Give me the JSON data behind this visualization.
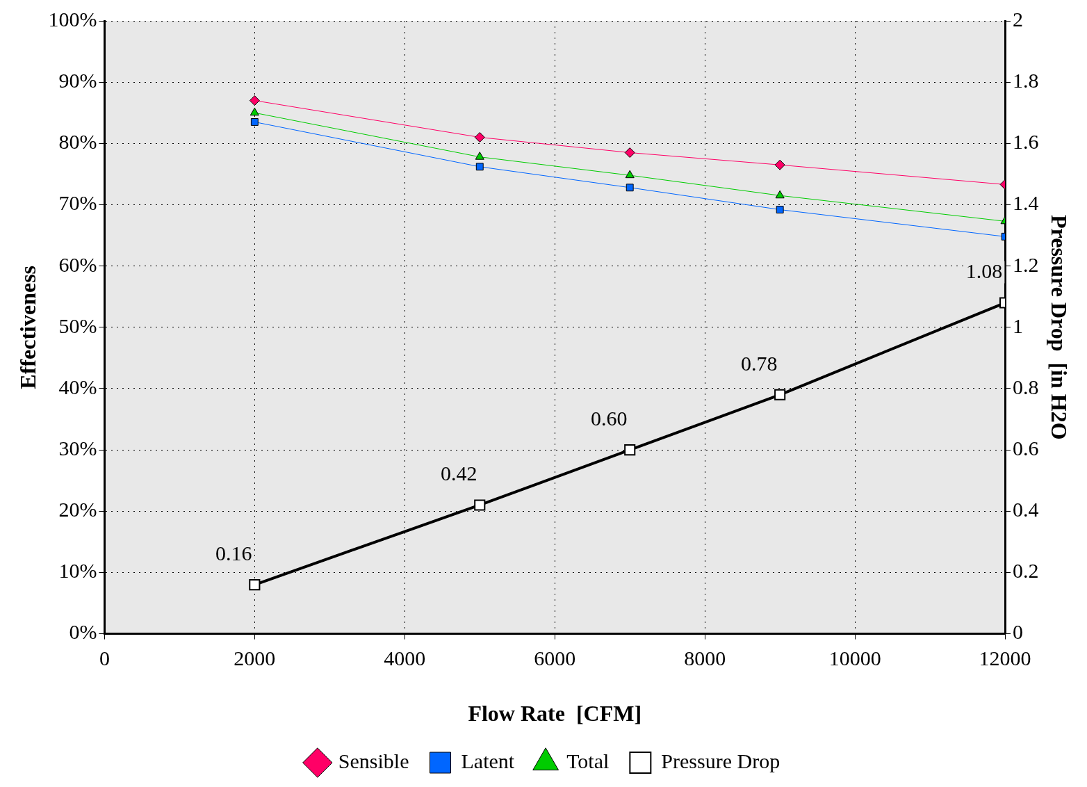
{
  "chart_data": {
    "type": "line",
    "xlabel": "Flow Rate  [CFM]",
    "ylabel": "Effectiveness",
    "y2label": "Pressure Drop  [in H2O",
    "x": [
      2000,
      5000,
      7000,
      9000,
      12000
    ],
    "series": [
      {
        "name": "Sensible",
        "color": "#ff0066",
        "marker": "diamond",
        "values": [
          87,
          81,
          78.5,
          76.5,
          73.3
        ]
      },
      {
        "name": "Latent",
        "color": "#0066ff",
        "marker": "square",
        "values": [
          83.5,
          76.2,
          72.8,
          69.2,
          64.8
        ]
      },
      {
        "name": "Total",
        "color": "#00cc00",
        "marker": "triangle",
        "values": [
          85,
          77.8,
          74.8,
          71.5,
          67.3
        ]
      },
      {
        "name": "Pressure Drop",
        "color": "#000000",
        "marker": "square",
        "axis": "y2",
        "values": [
          0.16,
          0.42,
          0.6,
          0.78,
          1.08
        ],
        "value_labels": [
          "0.16",
          "0.42",
          "0.60",
          "0.78",
          "1.08"
        ]
      }
    ],
    "xlim": [
      0,
      12000
    ],
    "xticks": [
      0,
      2000,
      4000,
      6000,
      8000,
      10000,
      12000
    ],
    "ylim": [
      0,
      100
    ],
    "yticks": [
      {
        "value": 0,
        "label": "0%"
      },
      {
        "value": 10,
        "label": "10%"
      },
      {
        "value": 20,
        "label": "20%"
      },
      {
        "value": 30,
        "label": "30%"
      },
      {
        "value": 40,
        "label": "40%"
      },
      {
        "value": 50,
        "label": "50%"
      },
      {
        "value": 60,
        "label": "60%"
      },
      {
        "value": 70,
        "label": "70%"
      },
      {
        "value": 80,
        "label": "80%"
      },
      {
        "value": 90,
        "label": "90%"
      },
      {
        "value": 100,
        "label": "100%"
      }
    ],
    "y2lim": [
      0,
      2
    ],
    "y2ticks": [
      0,
      0.2,
      0.4,
      0.6,
      0.8,
      1,
      1.2,
      1.4,
      1.6,
      1.8,
      2
    ],
    "grid": true,
    "legend": "bottom",
    "line_style": "solid"
  }
}
